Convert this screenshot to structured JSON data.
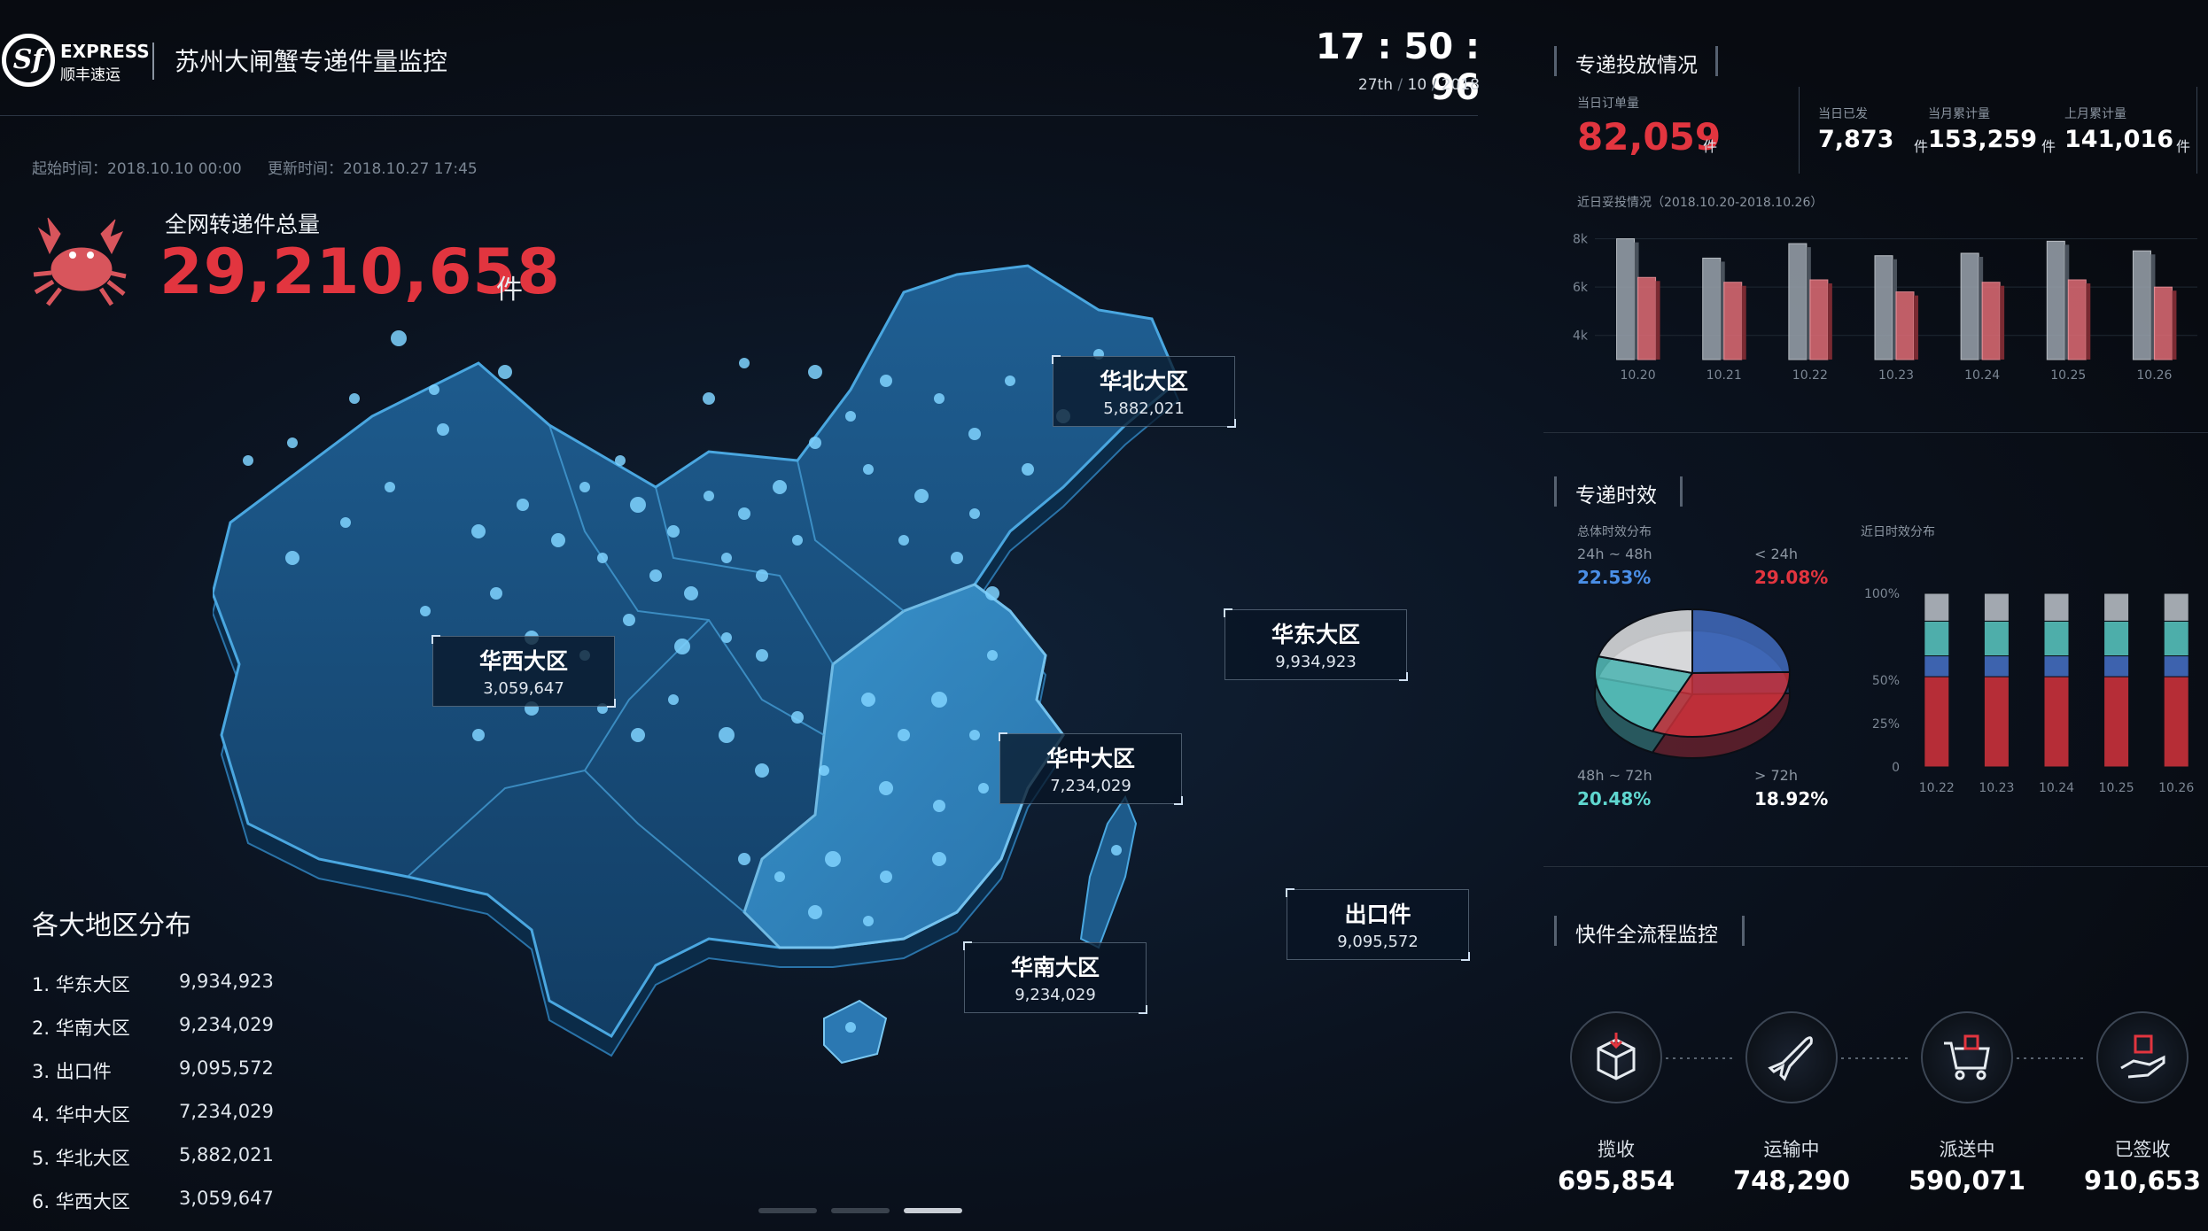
{
  "header": {
    "logo_mark": "Sf",
    "logo_word": "EXPRESS",
    "logo_cn": "顺丰速运",
    "title": "苏州大闸蟹专递件量监控",
    "clock": "17 : 50 : 96",
    "date_day": "27th",
    "date_sep1": "/",
    "date_month": "10",
    "date_sep2": "/",
    "date_year": "2018"
  },
  "meta": {
    "start": "起始时间：2018.10.10 00:00",
    "update": "更新时间：2018.10.27 17:45"
  },
  "total": {
    "label": "全网转递件总量",
    "value": "29,210,658",
    "unit": "件"
  },
  "map": {
    "regions": [
      {
        "name": "华北大区",
        "value": "5,882,021"
      },
      {
        "name": "华东大区",
        "value": "9,934,923"
      },
      {
        "name": "华西大区",
        "value": "3,059,647"
      },
      {
        "name": "华中大区",
        "value": "7,234,029"
      },
      {
        "name": "华南大区",
        "value": "9,234,029"
      },
      {
        "name": "出口件",
        "value": "9,095,572"
      }
    ]
  },
  "ranking": {
    "title": "各大地区分布",
    "items": [
      {
        "name": "1.  华东大区",
        "value": "9,934,923"
      },
      {
        "name": "2.  华南大区",
        "value": "9,234,029"
      },
      {
        "name": "3.  出口件",
        "value": "9,095,572"
      },
      {
        "name": "4.  华中大区",
        "value": "7,234,029"
      },
      {
        "name": "5.  华北大区",
        "value": "5,882,021"
      },
      {
        "name": "6.  华西大区",
        "value": "3,059,647"
      }
    ]
  },
  "delivery": {
    "title": "专递投放情况",
    "today_label": "当日订单量",
    "today_value": "82,059",
    "unit": "件",
    "kpis": [
      {
        "label": "当日已发",
        "value": "7,873"
      },
      {
        "label": "当月累计量",
        "value": "153,259"
      },
      {
        "label": "上月累计量",
        "value": "141,016"
      }
    ],
    "chart_caption": "近日妥投情况（2018.10.20-2018.10.26）"
  },
  "timeliness": {
    "title": "专递时效",
    "pie_caption": "总体时效分布",
    "bar_caption": "近日时效分布",
    "slices": [
      {
        "label": "24h ~ 48h",
        "pct": "22.53%",
        "color": "#4a78d4"
      },
      {
        "label": "< 24h",
        "pct": "29.08%",
        "color": "#e2353f"
      },
      {
        "label": "48h ~ 72h",
        "pct": "20.48%",
        "color": "#5fd6cf"
      },
      {
        "label": "> 72h",
        "pct": "18.92%",
        "color": "#ffffff"
      }
    ]
  },
  "flow": {
    "title": "快件全流程监控",
    "steps": [
      {
        "name": "揽收",
        "value": "695,854",
        "icon": "box-icon"
      },
      {
        "name": "运输中",
        "value": "748,290",
        "icon": "plane-icon"
      },
      {
        "name": "派送中",
        "value": "590,071",
        "icon": "cart-icon"
      },
      {
        "name": "已签收",
        "value": "910,653",
        "icon": "hand-package-icon"
      }
    ]
  },
  "chart_data": [
    {
      "type": "bar",
      "categories": [
        "10.20",
        "10.21",
        "10.22",
        "10.23",
        "10.24",
        "10.25",
        "10.26"
      ],
      "series": [
        {
          "values": [
            8000,
            7200,
            7800,
            7300,
            7400,
            7900,
            7500
          ],
          "color": "#9aa3ad"
        },
        {
          "values": [
            6400,
            6200,
            6300,
            5800,
            6200,
            6300,
            6000
          ],
          "color": "#e06c75"
        }
      ],
      "ylim": [
        3000,
        8500
      ],
      "ytick_labels": [
        "8k",
        "6k",
        "4k"
      ],
      "yticks": [
        8000,
        6000,
        4000
      ]
    },
    {
      "type": "bar",
      "stacked": true,
      "categories": [
        "10.22",
        "10.23",
        "10.24",
        "10.25",
        "10.26"
      ],
      "series": [
        {
          "values": [
            52,
            52,
            52,
            52,
            52
          ],
          "color": "#e2353f"
        },
        {
          "values": [
            12,
            12,
            12,
            12,
            12
          ],
          "color": "#4a78d4"
        },
        {
          "values": [
            20,
            20,
            20,
            20,
            20
          ],
          "color": "#5fd6cf"
        },
        {
          "values": [
            16,
            16,
            16,
            16,
            16
          ],
          "color": "#c9cfd6"
        }
      ],
      "ylim": [
        0,
        100
      ],
      "ytick_labels": [
        "100%",
        "50%",
        "25%",
        "0"
      ],
      "yticks": [
        100,
        50,
        25,
        0
      ]
    },
    {
      "type": "pie",
      "labels": [
        "24h ~ 48h",
        "< 24h",
        "48h ~ 72h",
        "> 72h"
      ],
      "values": [
        22.53,
        29.08,
        20.48,
        18.92
      ]
    }
  ]
}
